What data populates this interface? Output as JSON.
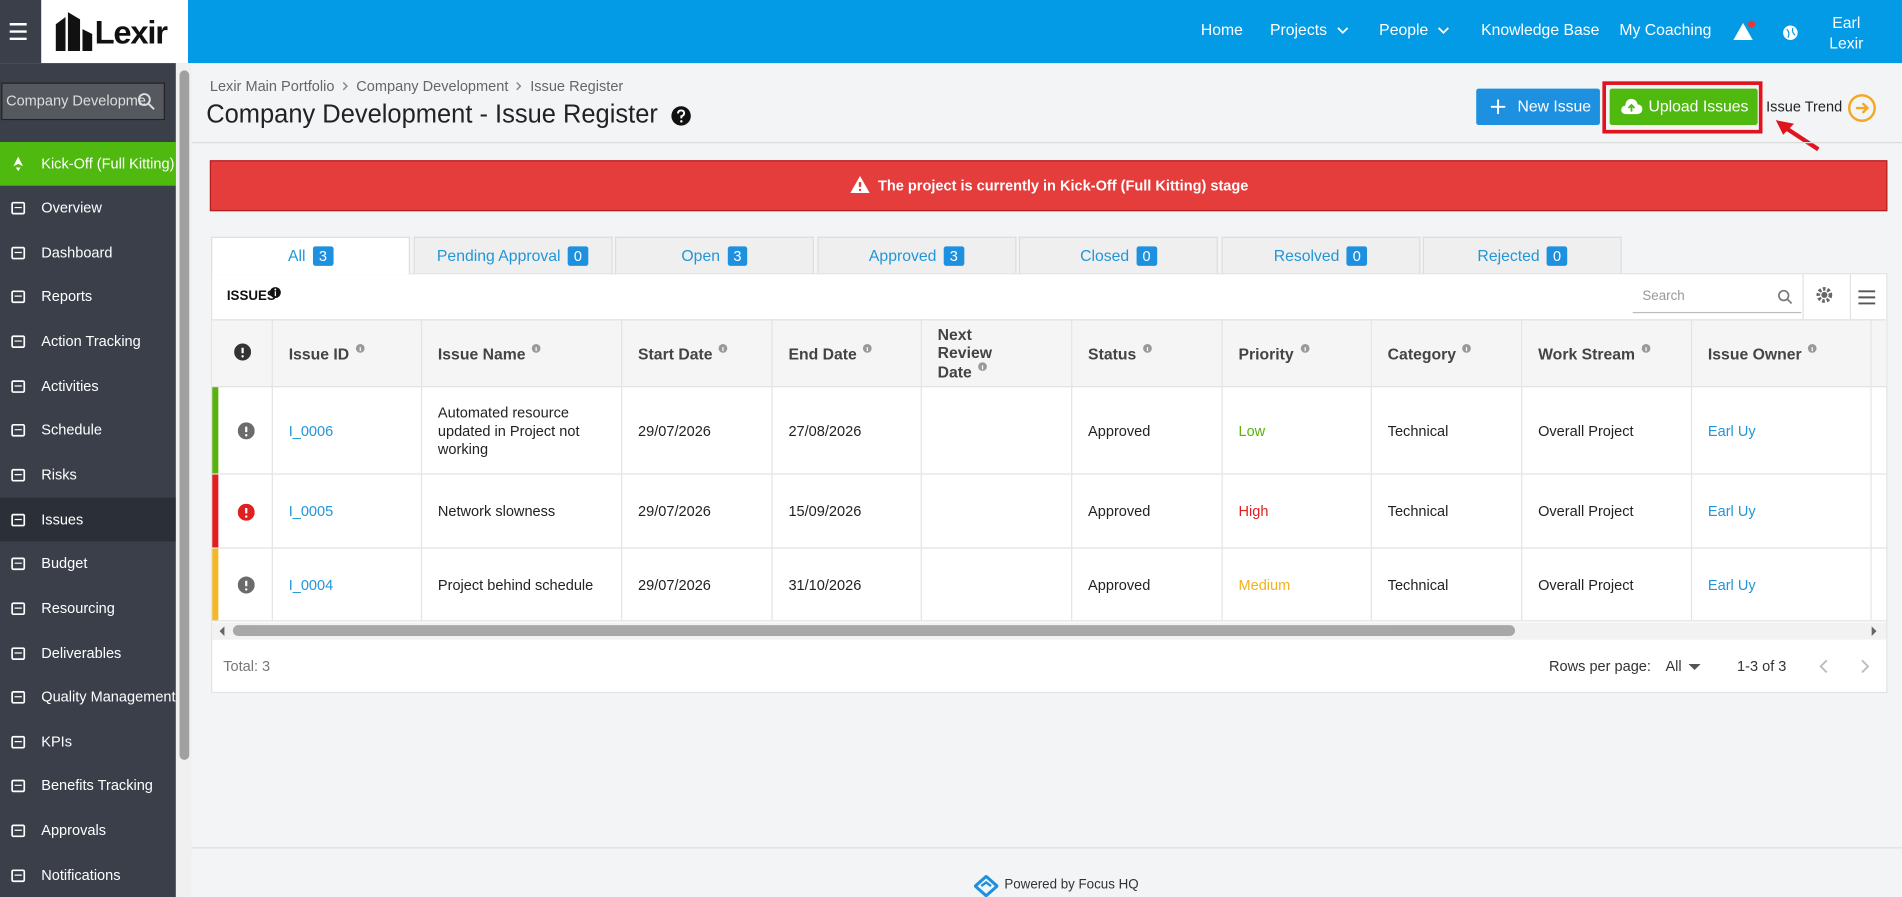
{
  "header": {
    "logo": "Lexir",
    "nav": [
      "Home",
      "Projects",
      "People",
      "Knowledge Base",
      "My Coaching"
    ],
    "user": [
      "Earl",
      "Lexir"
    ]
  },
  "sidebar": {
    "search": "Company Developme",
    "stage": "Kick-Off (Full Kitting) Se",
    "active": "Issues",
    "menu": [
      "Overview",
      "Dashboard",
      "Reports",
      "Action Tracking",
      "Activities",
      "Schedule",
      "Risks",
      "Issues",
      "Budget",
      "Resourcing",
      "Deliverables",
      "Quality Management",
      "KPIs",
      "Benefits Tracking",
      "Approvals",
      "Notifications"
    ]
  },
  "page": {
    "breadcrumb": [
      "Lexir Main Portfolio",
      "Company Development",
      "Issue Register"
    ],
    "title": "Company Development - Issue Register",
    "buttons": {
      "new": "New Issue",
      "upload": "Upload Issues",
      "trend": "Issue Trend"
    }
  },
  "alert": "The project is currently in Kick-Off (Full Kitting) stage",
  "tabs": {
    "active": "All",
    "items": [
      {
        "label": "All",
        "count": 3
      },
      {
        "label": "Pending Approval",
        "count": 0
      },
      {
        "label": "Open",
        "count": 3
      },
      {
        "label": "Approved",
        "count": 3
      },
      {
        "label": "Closed",
        "count": 0
      },
      {
        "label": "Resolved",
        "count": 0
      },
      {
        "label": "Rejected",
        "count": 0
      }
    ]
  },
  "table": {
    "heading": "ISSUES",
    "search_placeholder": "Search",
    "columns": [
      "Issue ID",
      "Issue Name",
      "Start Date",
      "End Date",
      "Next Review Date",
      "Status",
      "Priority",
      "Category",
      "Work Stream",
      "Issue Owner"
    ],
    "rows": [
      {
        "cells": [
          "I_0006",
          "Automated resource updated in Project not working",
          "29/07/2026",
          "27/08/2026",
          null,
          "Approved",
          "Low",
          "Technical",
          "Overall Project",
          "Earl Uy"
        ],
        "strip": "#57b20e",
        "icon": "#6b6b6b",
        "priority_color": "#57b20e"
      },
      {
        "cells": [
          "I_0005",
          "Network slowness",
          "29/07/2026",
          "15/09/2026",
          null,
          "Approved",
          "High",
          "Technical",
          "Overall Project",
          "Earl Uy"
        ],
        "strip": "#e02020",
        "icon": "#e02020",
        "priority_color": "#e02020"
      },
      {
        "cells": [
          "I_0004",
          "Project behind schedule",
          "29/07/2026",
          "31/10/2026",
          null,
          "Approved",
          "Medium",
          "Technical",
          "Overall Project",
          "Earl Uy"
        ],
        "strip": "#f5b72a",
        "icon": "#6b6b6b",
        "priority_color": "#f0b31c"
      }
    ]
  },
  "footer": {
    "total": "Total: 3",
    "rows_per_page": "Rows per page:",
    "rows_option": "All",
    "range": "1-3 of 3",
    "powered": "Powered by Focus HQ"
  }
}
